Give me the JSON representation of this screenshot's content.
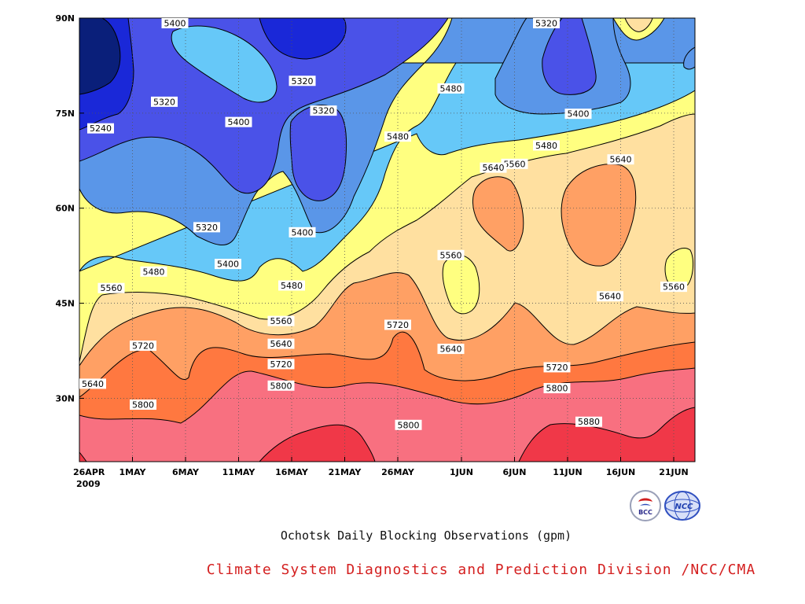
{
  "chart_data": {
    "type": "heatmap",
    "subtype": "filled-contour",
    "title": "Ochotsk Daily Blocking Observations (gpm)",
    "credit": "Climate System Diagnostics and Prediction Division /NCC/CMA",
    "x": {
      "ticks": [
        "26APR",
        "1MAY",
        "6MAY",
        "11MAY",
        "16MAY",
        "21MAY",
        "26MAY",
        "1JUN",
        "6JUN",
        "11JUN",
        "16JUN",
        "21JUN"
      ],
      "year_label": "2009",
      "range": [
        "2009-04-26",
        "2009-06-23"
      ]
    },
    "y": {
      "ticks": [
        "30N",
        "45N",
        "60N",
        "75N",
        "90N"
      ],
      "tick_values": [
        30,
        45,
        60,
        75,
        90
      ],
      "range": [
        20,
        90
      ]
    },
    "grid": "dotted",
    "levels": [
      5240,
      5320,
      5400,
      5480,
      5560,
      5640,
      5720,
      5800,
      5880
    ],
    "level_colors": {
      "below_5240": "#0a1f7a",
      "5240": "#1a28d8",
      "5320": "#4a52e8",
      "5400": "#5a96e8",
      "5480": "#66c8f8",
      "5560": "#ffff80",
      "5640": "#ffe0a0",
      "5720": "#ffa064",
      "5800": "#ff7840",
      "5880": "#f87080",
      "above_5880": "#f03848"
    },
    "contour_labels": [
      {
        "text": "5400",
        "date": "2009-05-05",
        "lat": 89.2
      },
      {
        "text": "5320",
        "date": "2009-06-09",
        "lat": 89.2
      },
      {
        "text": "5320",
        "date": "2009-05-04",
        "lat": 76.8
      },
      {
        "text": "5240",
        "date": "2009-04-28",
        "lat": 72.6
      },
      {
        "text": "5400",
        "date": "2009-05-11",
        "lat": 73.6
      },
      {
        "text": "5320",
        "date": "2009-05-17",
        "lat": 80.1
      },
      {
        "text": "5320",
        "date": "2009-05-19",
        "lat": 75.4
      },
      {
        "text": "5480",
        "date": "2009-05-31",
        "lat": 78.9
      },
      {
        "text": "5480",
        "date": "2009-05-26",
        "lat": 71.3
      },
      {
        "text": "5400",
        "date": "2009-06-12",
        "lat": 74.9
      },
      {
        "text": "5480",
        "date": "2009-06-09",
        "lat": 69.9
      },
      {
        "text": "5560",
        "date": "2009-06-06",
        "lat": 67.0
      },
      {
        "text": "5640",
        "date": "2009-06-04",
        "lat": 66.4
      },
      {
        "text": "5640",
        "date": "2009-06-16",
        "lat": 67.7
      },
      {
        "text": "5320",
        "date": "2009-05-08",
        "lat": 57.0
      },
      {
        "text": "5400",
        "date": "2009-05-17",
        "lat": 56.2
      },
      {
        "text": "5400",
        "date": "2009-05-10",
        "lat": 51.2
      },
      {
        "text": "5480",
        "date": "2009-05-03",
        "lat": 50.0
      },
      {
        "text": "5560",
        "date": "2009-04-29",
        "lat": 47.4
      },
      {
        "text": "5480",
        "date": "2009-05-16",
        "lat": 47.8
      },
      {
        "text": "5560",
        "date": "2009-05-31",
        "lat": 52.6
      },
      {
        "text": "5640",
        "date": "2009-06-15",
        "lat": 46.1
      },
      {
        "text": "5560",
        "date": "2009-06-21",
        "lat": 47.6
      },
      {
        "text": "5560",
        "date": "2009-05-15",
        "lat": 42.2
      },
      {
        "text": "5640",
        "date": "2009-05-15",
        "lat": 38.6
      },
      {
        "text": "5720",
        "date": "2009-05-02",
        "lat": 38.3
      },
      {
        "text": "5720",
        "date": "2009-05-26",
        "lat": 41.6
      },
      {
        "text": "5640",
        "date": "2009-05-31",
        "lat": 37.8
      },
      {
        "text": "5720",
        "date": "2009-05-15",
        "lat": 35.4
      },
      {
        "text": "5720",
        "date": "2009-06-10",
        "lat": 34.9
      },
      {
        "text": "5640",
        "date": "2009-04-26",
        "lat": 32.3
      },
      {
        "text": "5800",
        "date": "2009-05-15",
        "lat": 32.0
      },
      {
        "text": "5800",
        "date": "2009-06-10",
        "lat": 31.6
      },
      {
        "text": "5800",
        "date": "2009-05-02",
        "lat": 29.0
      },
      {
        "text": "5800",
        "date": "2009-05-27",
        "lat": 25.8
      },
      {
        "text": "5880",
        "date": "2009-06-13",
        "lat": 26.3
      }
    ]
  },
  "logos": {
    "bcc": "BCC",
    "ncc": "NCC"
  }
}
